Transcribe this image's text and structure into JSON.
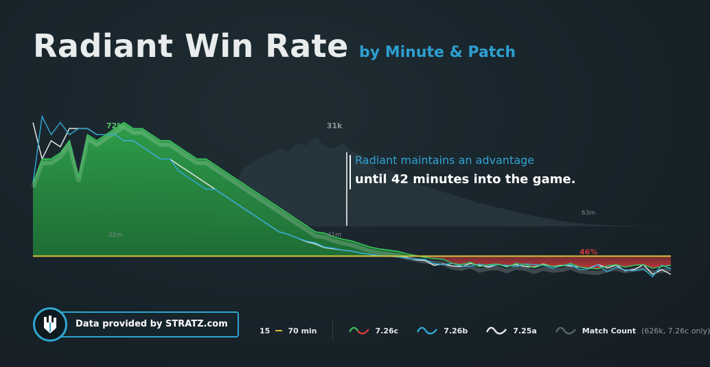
{
  "title": "Radiant Win Rate",
  "subtitle": "by Minute & Patch",
  "annotation": {
    "line1": "Radiant maintains an advantage",
    "line2": "until 42 minutes into the game."
  },
  "footer": {
    "provider": "Data provided by STRATZ.com",
    "range_start": "15",
    "range_end": "70 min",
    "legend": [
      {
        "label": "7.26c",
        "icon": "wave-green-red-icon"
      },
      {
        "label": "7.26b",
        "icon": "wave-blue-icon"
      },
      {
        "label": "7.25a",
        "icon": "wave-white-icon"
      },
      {
        "label": "Match Count",
        "icon": "wave-gray-icon"
      }
    ],
    "match_count_note": "(626k, 7.26c only)"
  },
  "colors": {
    "title_sub": "#2d9fd0",
    "win_green": "#2e9e48",
    "loss_red": "#c9383a",
    "patch_b": "#2fa6cf",
    "patch_a": "#e6e6e6",
    "baseline": "#d8c43a",
    "match_area": "#2a3a42"
  },
  "chart_data": {
    "type": "line",
    "x": [
      0,
      1,
      2,
      3,
      4,
      5,
      6,
      7,
      8,
      9,
      10,
      11,
      12,
      13,
      14,
      15,
      16,
      17,
      18,
      19,
      20,
      21,
      22,
      23,
      24,
      25,
      26,
      27,
      28,
      29,
      30,
      31,
      32,
      33,
      34,
      35,
      36,
      37,
      38,
      39,
      40,
      41,
      42,
      43,
      44,
      45,
      46,
      47,
      48,
      49,
      50,
      51,
      52,
      53,
      54,
      55,
      56,
      57,
      58,
      59,
      60,
      61,
      62,
      63,
      64,
      65,
      66,
      67,
      68,
      69,
      70
    ],
    "ylim": [
      40,
      75
    ],
    "baseline": 50,
    "series": [
      {
        "name": "7.26c",
        "values": [
          62,
          66,
          66,
          67,
          69,
          63,
          70,
          69,
          70,
          71,
          72,
          71,
          71,
          70,
          69,
          69,
          68,
          67,
          66,
          66,
          65,
          64,
          63,
          62,
          61,
          60,
          59,
          58,
          57,
          56,
          55,
          54,
          53.8,
          53.2,
          52.8,
          52.5,
          52,
          51.5,
          51.2,
          51,
          50.8,
          50.4,
          50.1,
          49.8,
          49.6,
          49.5,
          48.8,
          48.6,
          49,
          48.3,
          48.6,
          48.7,
          48.2,
          48.8,
          48.6,
          48.1,
          48.6,
          48.3,
          48.4,
          48.8,
          48.2,
          48.0,
          47.9,
          48.4,
          48.6,
          48.2,
          48.5,
          48.6,
          48.0,
          48.3,
          48.5
        ]
      },
      {
        "name": "7.26b",
        "values": [
          62,
          73,
          70,
          72,
          70,
          71,
          71,
          70,
          70,
          70,
          69,
          69,
          68,
          67,
          66,
          66,
          64,
          63,
          62,
          61,
          61,
          60,
          59,
          58,
          57,
          56,
          55,
          54,
          53.6,
          53,
          52.5,
          52.2,
          51.5,
          51.3,
          51,
          50.8,
          50.5,
          50.3,
          50.1,
          50,
          49.9,
          49.7,
          49.5,
          49.5,
          48.8,
          48.6,
          48.8,
          48.4,
          48.3,
          48.7,
          48.4,
          48.6,
          48.5,
          48.3,
          48.7,
          48.6,
          48.5,
          48.0,
          48.4,
          48.6,
          47.8,
          47.9,
          48.6,
          47.4,
          48.2,
          47.7,
          47.6,
          47.9,
          46.6,
          48.5,
          47.9
        ]
      },
      {
        "name": "7.25a",
        "values": [
          72,
          66,
          69,
          68,
          71,
          71,
          71,
          70,
          70,
          70,
          69,
          69,
          68,
          67,
          66,
          66,
          65,
          64,
          63,
          62,
          61,
          60,
          59,
          58,
          57,
          56,
          55,
          54,
          53.6,
          53,
          52.4,
          52,
          51.4,
          51.2,
          51,
          50.8,
          50.5,
          50.3,
          50,
          50,
          49.9,
          49.8,
          49.4,
          49.3,
          48.5,
          48.7,
          48.4,
          48.3,
          48.8,
          48.5,
          48.2,
          48.6,
          48.4,
          48.6,
          48.3,
          48.2,
          48.7,
          48.3,
          48.5,
          48.4,
          48.2,
          48.0,
          48.6,
          48.1,
          48.5,
          47.6,
          47.8,
          48.6,
          47.0,
          47.8,
          47.0
        ]
      }
    ],
    "match_count_k": [
      0,
      0,
      0,
      0,
      0,
      0,
      0,
      0,
      0,
      0,
      0,
      0,
      0,
      0,
      0,
      0,
      0,
      0,
      0,
      0,
      3,
      8,
      12,
      20,
      22,
      24,
      25,
      27,
      26,
      29,
      28,
      31,
      28,
      27,
      29,
      26,
      25,
      22,
      19,
      20,
      18,
      16,
      15,
      14,
      13,
      12,
      11,
      10,
      9,
      8,
      7.4,
      6.6,
      5.8,
      5,
      4.3,
      3.6,
      3,
      2.4,
      1.9,
      1.4,
      1.1,
      0.8,
      0.6,
      0.4,
      0.3,
      0.2,
      0.15,
      0.1,
      0.08,
      0.05,
      0.03
    ],
    "annotations": [
      {
        "text": "72%"
      },
      {
        "text": "46%"
      },
      {
        "text": "31k"
      },
      {
        "text": "22m"
      },
      {
        "text": "41m"
      },
      {
        "text": "63m"
      }
    ]
  }
}
